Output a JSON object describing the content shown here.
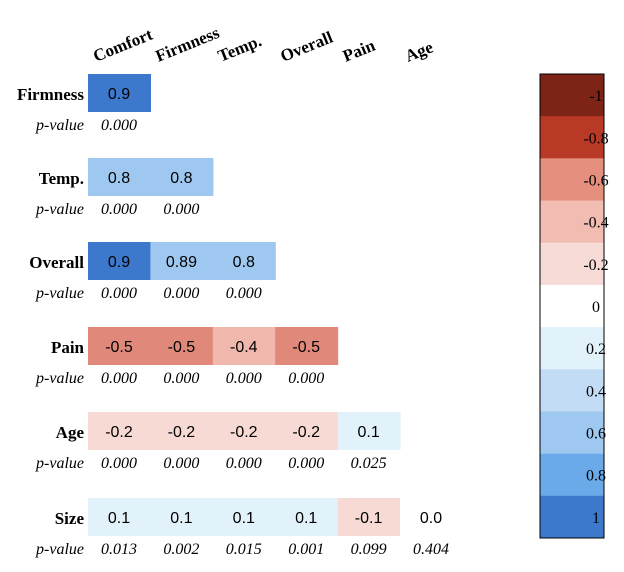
{
  "chart_data": {
    "type": "heatmap",
    "title": "",
    "columns": [
      "Comfort",
      "Firmness",
      "Temp.",
      "Overall",
      "Pain",
      "Age"
    ],
    "rows": [
      {
        "name": "Firmness",
        "p_label": "p-value",
        "values": [
          "0.9"
        ],
        "p_values": [
          "0.000"
        ]
      },
      {
        "name": "Temp.",
        "p_label": "p-value",
        "values": [
          "0.8",
          "0.8"
        ],
        "p_values": [
          "0.000",
          "0.000"
        ]
      },
      {
        "name": "Overall",
        "p_label": "p-value",
        "values": [
          "0.9",
          "0.89",
          "0.8"
        ],
        "p_values": [
          "0.000",
          "0.000",
          "0.000"
        ]
      },
      {
        "name": "Pain",
        "p_label": "p-value",
        "values": [
          "-0.5",
          "-0.5",
          "-0.4",
          "-0.5"
        ],
        "p_values": [
          "0.000",
          "0.000",
          "0.000",
          "0.000"
        ]
      },
      {
        "name": "Age",
        "p_label": "p-value",
        "values": [
          "-0.2",
          "-0.2",
          "-0.2",
          "-0.2",
          "0.1"
        ],
        "p_values": [
          "0.000",
          "0.000",
          "0.000",
          "0.000",
          "0.025"
        ]
      },
      {
        "name": "Size",
        "p_label": "p-value",
        "values": [
          "0.1",
          "0.1",
          "0.1",
          "0.1",
          "-0.1",
          "0.0"
        ],
        "p_values": [
          "0.013",
          "0.002",
          "0.015",
          "0.001",
          "0.099",
          "0.404"
        ]
      }
    ],
    "colorbar": {
      "ticks": [
        "-1",
        "-0.8",
        "-0.6",
        "-0.4",
        "-0.2",
        "0",
        "0.2",
        "0.4",
        "0.6",
        "0.8",
        "1"
      ],
      "colors": [
        "#7d2417",
        "#b83a26",
        "#e58f7e",
        "#f1bcb1",
        "#f7dbd6",
        "#ffffff",
        "#e2f2fb",
        "#c2dcf5",
        "#9ec8f0",
        "#6aaae8",
        "#3c78cb"
      ]
    },
    "scale": [
      {
        "v": -0.5,
        "color": "#e0897a"
      },
      {
        "v": -0.4,
        "color": "#f0b8ad"
      },
      {
        "v": -0.2,
        "color": "#f7dad4"
      },
      {
        "v": -0.1,
        "color": "#f7dad4"
      },
      {
        "v": 0.0,
        "color": "#ffffff"
      },
      {
        "v": 0.1,
        "color": "#e2f2fb"
      },
      {
        "v": 0.8,
        "color": "#9ec8f0"
      },
      {
        "v": 0.89,
        "color": "#9ec8f0"
      },
      {
        "v": 0.9,
        "color": "#3c78cb"
      }
    ]
  }
}
